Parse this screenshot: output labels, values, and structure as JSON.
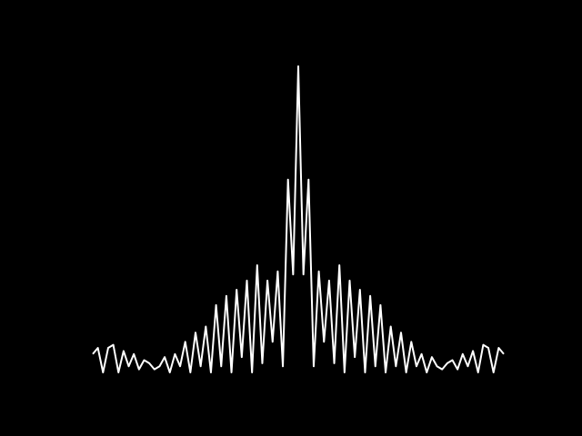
{
  "chart_data": {
    "type": "line",
    "color": "#ffffff",
    "grid": false,
    "xlim": [
      -1,
      1
    ],
    "ylim": [
      0,
      100
    ],
    "x": [
      -1,
      -0.975,
      -0.95,
      -0.925,
      -0.9,
      -0.875,
      -0.85,
      -0.825,
      -0.8,
      -0.775,
      -0.75,
      -0.725,
      -0.7,
      -0.675,
      -0.65,
      -0.625,
      -0.6,
      -0.575,
      -0.55,
      -0.525,
      -0.5,
      -0.475,
      -0.45,
      -0.425,
      -0.4,
      -0.375,
      -0.35,
      -0.325,
      -0.3,
      -0.275,
      -0.25,
      -0.225,
      -0.2,
      -0.175,
      -0.15,
      -0.125,
      -0.1,
      -0.075,
      -0.05,
      -0.025,
      0,
      0.025,
      0.05,
      0.075,
      0.1,
      0.125,
      0.15,
      0.175,
      0.2,
      0.225,
      0.25,
      0.275,
      0.3,
      0.325,
      0.35,
      0.375,
      0.4,
      0.425,
      0.45,
      0.475,
      0.5,
      0.525,
      0.55,
      0.575,
      0.6,
      0.625,
      0.65,
      0.675,
      0.7,
      0.725,
      0.75,
      0.775,
      0.8,
      0.825,
      0.85,
      0.875,
      0.9,
      0.925,
      0.95,
      0.975,
      1
    ],
    "values": [
      6,
      8,
      0,
      8,
      9,
      0,
      7,
      2,
      6,
      1,
      4,
      3,
      1,
      2,
      5,
      0,
      6,
      2,
      10,
      0,
      13,
      2,
      15,
      0,
      22,
      2,
      25,
      0,
      27,
      5,
      30,
      0,
      35,
      3,
      30,
      10,
      33,
      2,
      63,
      32,
      100,
      32,
      63,
      2,
      33,
      10,
      30,
      3,
      35,
      0,
      30,
      5,
      27,
      0,
      25,
      2,
      22,
      0,
      15,
      2,
      13,
      0,
      10,
      2,
      6,
      0,
      5,
      2,
      1,
      3,
      4,
      1,
      6,
      2,
      7,
      0,
      9,
      8,
      0,
      8,
      6
    ]
  }
}
